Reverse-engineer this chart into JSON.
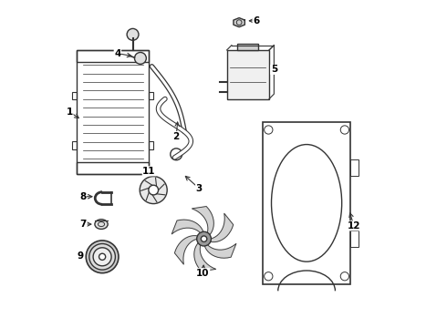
{
  "bg_color": "#ffffff",
  "line_color": "#333333",
  "label_color": "#000000",
  "title": ""
}
